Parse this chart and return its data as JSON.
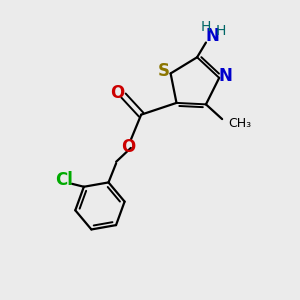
{
  "background_color": "#ebebeb",
  "bond_color": "#000000",
  "S_color": "#8b7500",
  "N_color": "#0000cc",
  "O_color": "#cc0000",
  "Cl_color": "#00aa00",
  "NH_color": "#006666",
  "figsize": [
    3.0,
    3.0
  ],
  "dpi": 100,
  "xlim": [
    0,
    10
  ],
  "ylim": [
    0,
    10
  ]
}
